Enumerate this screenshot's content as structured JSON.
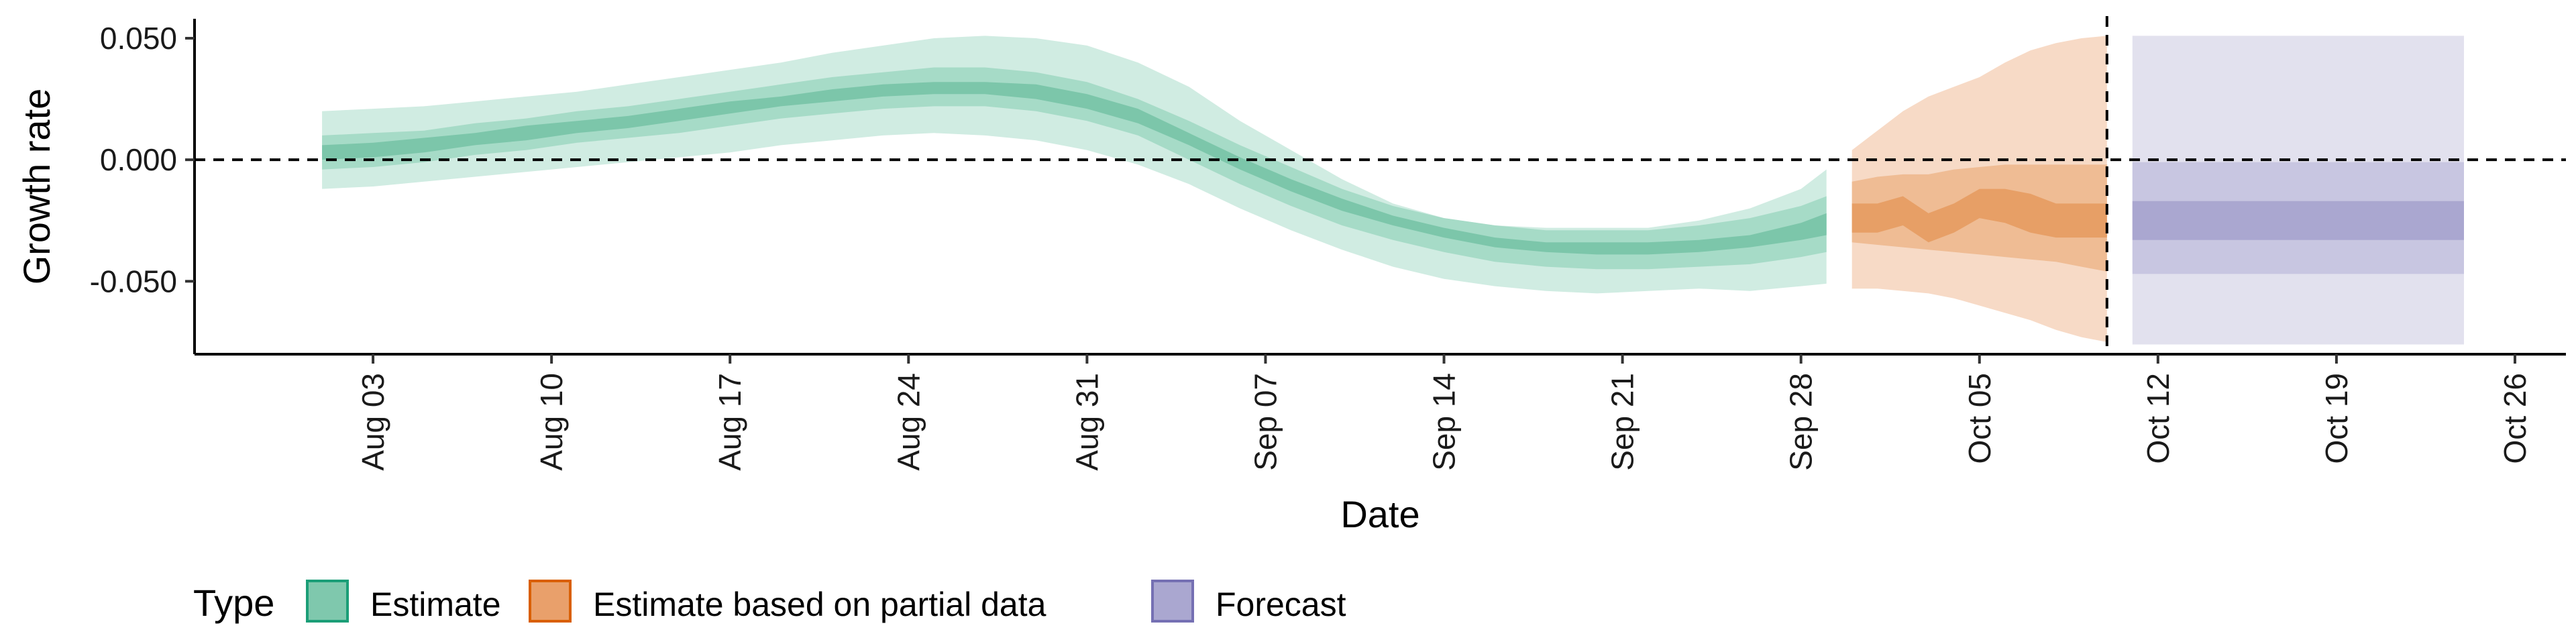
{
  "chart_data": {
    "type": "area",
    "xlabel": "Date",
    "ylabel": "Growth rate",
    "xlim": [
      "2020-07-27",
      "2020-10-28"
    ],
    "ylim": [
      -0.08,
      0.058
    ],
    "x_ticks": [
      {
        "date": "2020-08-03",
        "label": "Aug 03"
      },
      {
        "date": "2020-08-10",
        "label": "Aug 10"
      },
      {
        "date": "2020-08-17",
        "label": "Aug 17"
      },
      {
        "date": "2020-08-24",
        "label": "Aug 24"
      },
      {
        "date": "2020-08-31",
        "label": "Aug 31"
      },
      {
        "date": "2020-09-07",
        "label": "Sep 07"
      },
      {
        "date": "2020-09-14",
        "label": "Sep 14"
      },
      {
        "date": "2020-09-21",
        "label": "Sep 21"
      },
      {
        "date": "2020-09-28",
        "label": "Sep 28"
      },
      {
        "date": "2020-10-05",
        "label": "Oct 05"
      },
      {
        "date": "2020-10-12",
        "label": "Oct 12"
      },
      {
        "date": "2020-10-19",
        "label": "Oct 19"
      },
      {
        "date": "2020-10-26",
        "label": "Oct 26"
      }
    ],
    "y_ticks": [
      {
        "value": 0.05,
        "label": "0.050"
      },
      {
        "value": 0.0,
        "label": "0.000"
      },
      {
        "value": -0.05,
        "label": "-0.050"
      }
    ],
    "reference_lines": {
      "horizontal_y": 0,
      "vertical_date": "2020-10-10"
    },
    "grid": false,
    "legend": {
      "title": "Type",
      "position": "bottom-left",
      "entries": [
        {
          "label": "Estimate",
          "fill": "#7fc8ad",
          "stroke": "#1b9e77"
        },
        {
          "label": "Estimate based on partial data",
          "fill": "#e9a06b",
          "stroke": "#d95f02"
        },
        {
          "label": "Forecast",
          "fill": "#aaa7d0",
          "stroke": "#7570b3"
        }
      ]
    },
    "series": [
      {
        "type": "Estimate",
        "colors": {
          "outer": "#d0ece2",
          "mid": "#a6dbc7",
          "inner": "#7cc6aa"
        },
        "x": [
          "2020-08-01",
          "2020-08-03",
          "2020-08-05",
          "2020-08-07",
          "2020-08-09",
          "2020-08-11",
          "2020-08-13",
          "2020-08-15",
          "2020-08-17",
          "2020-08-19",
          "2020-08-21",
          "2020-08-23",
          "2020-08-25",
          "2020-08-27",
          "2020-08-29",
          "2020-08-31",
          "2020-09-02",
          "2020-09-04",
          "2020-09-06",
          "2020-09-08",
          "2020-09-10",
          "2020-09-12",
          "2020-09-14",
          "2020-09-16",
          "2020-09-18",
          "2020-09-20",
          "2020-09-22",
          "2020-09-24",
          "2020-09-26",
          "2020-09-28",
          "2020-09-29"
        ],
        "outer_lower": [
          -0.012,
          -0.011,
          -0.009,
          -0.007,
          -0.005,
          -0.003,
          -0.001,
          0.001,
          0.003,
          0.006,
          0.008,
          0.01,
          0.011,
          0.01,
          0.008,
          0.004,
          -0.002,
          -0.01,
          -0.02,
          -0.029,
          -0.037,
          -0.044,
          -0.049,
          -0.052,
          -0.054,
          -0.055,
          -0.054,
          -0.053,
          -0.054,
          -0.052,
          -0.051
        ],
        "outer_upper": [
          0.02,
          0.021,
          0.022,
          0.024,
          0.026,
          0.028,
          0.031,
          0.034,
          0.037,
          0.04,
          0.044,
          0.047,
          0.05,
          0.051,
          0.05,
          0.047,
          0.04,
          0.03,
          0.016,
          0.004,
          -0.008,
          -0.018,
          -0.024,
          -0.027,
          -0.028,
          -0.028,
          -0.028,
          -0.025,
          -0.02,
          -0.012,
          -0.004
        ],
        "mid_lower": [
          -0.004,
          -0.003,
          -0.001,
          0.002,
          0.004,
          0.007,
          0.009,
          0.011,
          0.014,
          0.017,
          0.019,
          0.021,
          0.022,
          0.022,
          0.02,
          0.016,
          0.01,
          0.0,
          -0.01,
          -0.019,
          -0.027,
          -0.033,
          -0.038,
          -0.042,
          -0.044,
          -0.045,
          -0.045,
          -0.044,
          -0.043,
          -0.04,
          -0.038
        ],
        "mid_upper": [
          0.01,
          0.011,
          0.012,
          0.015,
          0.017,
          0.02,
          0.022,
          0.025,
          0.028,
          0.031,
          0.034,
          0.036,
          0.038,
          0.038,
          0.036,
          0.032,
          0.025,
          0.016,
          0.006,
          -0.003,
          -0.012,
          -0.019,
          -0.024,
          -0.027,
          -0.029,
          -0.029,
          -0.029,
          -0.027,
          -0.024,
          -0.019,
          -0.015
        ],
        "inner_lower": [
          0.0,
          0.001,
          0.003,
          0.006,
          0.008,
          0.011,
          0.013,
          0.016,
          0.019,
          0.022,
          0.024,
          0.026,
          0.027,
          0.027,
          0.025,
          0.021,
          0.015,
          0.006,
          -0.004,
          -0.013,
          -0.021,
          -0.027,
          -0.032,
          -0.036,
          -0.038,
          -0.039,
          -0.039,
          -0.038,
          -0.036,
          -0.033,
          -0.031
        ],
        "inner_upper": [
          0.006,
          0.007,
          0.009,
          0.011,
          0.014,
          0.016,
          0.018,
          0.021,
          0.024,
          0.026,
          0.029,
          0.031,
          0.032,
          0.032,
          0.031,
          0.027,
          0.021,
          0.011,
          0.001,
          -0.008,
          -0.016,
          -0.023,
          -0.028,
          -0.032,
          -0.034,
          -0.034,
          -0.034,
          -0.033,
          -0.031,
          -0.026,
          -0.022
        ]
      },
      {
        "type": "Estimate based on partial data",
        "colors": {
          "outer": "#f7dac6",
          "mid": "#efbc94",
          "inner": "#e79f66"
        },
        "x": [
          "2020-09-30",
          "2020-10-01",
          "2020-10-02",
          "2020-10-03",
          "2020-10-04",
          "2020-10-05",
          "2020-10-06",
          "2020-10-07",
          "2020-10-08",
          "2020-10-09",
          "2020-10-10"
        ],
        "outer_lower": [
          -0.053,
          -0.053,
          -0.054,
          -0.055,
          -0.057,
          -0.06,
          -0.063,
          -0.066,
          -0.07,
          -0.073,
          -0.075
        ],
        "outer_upper": [
          0.004,
          0.012,
          0.02,
          0.026,
          0.03,
          0.034,
          0.04,
          0.045,
          0.048,
          0.05,
          0.051
        ],
        "mid_lower": [
          -0.034,
          -0.035,
          -0.036,
          -0.037,
          -0.038,
          -0.039,
          -0.04,
          -0.041,
          -0.042,
          -0.044,
          -0.046
        ],
        "mid_upper": [
          -0.009,
          -0.007,
          -0.006,
          -0.006,
          -0.004,
          -0.003,
          -0.002,
          -0.002,
          -0.002,
          -0.002,
          -0.002
        ],
        "inner_lower": [
          -0.03,
          -0.03,
          -0.027,
          -0.034,
          -0.03,
          -0.024,
          -0.026,
          -0.03,
          -0.032,
          -0.032,
          -0.032
        ],
        "inner_upper": [
          -0.018,
          -0.018,
          -0.015,
          -0.022,
          -0.018,
          -0.012,
          -0.012,
          -0.014,
          -0.018,
          -0.018,
          -0.018
        ]
      },
      {
        "type": "Forecast",
        "colors": {
          "outer": "#e2e1ee",
          "mid": "#c8c6e1",
          "inner": "#aaa7d0"
        },
        "x": [
          "2020-10-11",
          "2020-10-24"
        ],
        "outer_lower": [
          -0.076,
          -0.076
        ],
        "outer_upper": [
          0.051,
          0.051
        ],
        "mid_lower": [
          -0.047,
          -0.047
        ],
        "mid_upper": [
          -0.001,
          -0.001
        ],
        "inner_lower": [
          -0.033,
          -0.033
        ],
        "inner_upper": [
          -0.017,
          -0.017
        ]
      }
    ]
  }
}
